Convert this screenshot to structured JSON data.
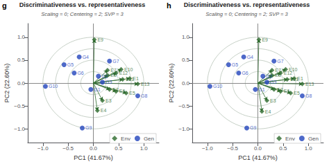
{
  "chart_data": [
    {
      "type": "scatter",
      "title": "Discriminativeness vs. representativeness",
      "subtitle": "Scaling = 0; Centering = 2; SVP = 3",
      "annotations": [
        "g"
      ],
      "xlabel": "PC1 (41.67%)",
      "ylabel": "PC2 (22.60%)",
      "xlim": [
        -1.3,
        1.3
      ],
      "ylim": [
        -1.3,
        1.3
      ],
      "xticks": [
        {
          "value": -1.0,
          "label": "−1.0"
        },
        {
          "value": -0.5,
          "label": "−0.5"
        },
        {
          "value": 0.0,
          "label": "0.0"
        },
        0.5,
        {
          "value": 1.0,
          "label": "1.0"
        }
      ],
      "yticks": [
        {
          "value": -1.0,
          "label": "−1.0"
        },
        {
          "value": -0.5,
          "label": "−0.5"
        },
        {
          "value": 0.0,
          "label": "0.0"
        },
        0.5,
        {
          "value": 1.0,
          "label": "1.0"
        }
      ],
      "grid": false,
      "legend": "lower right",
      "circle_radii": [
        0.25,
        0.5,
        0.75,
        1.0
      ],
      "series": [
        {
          "name": "Env",
          "type": "vector",
          "color": "#2d6a2d",
          "marker": "diamond",
          "labels": [
            "E9",
            "E7",
            "E10",
            "E12",
            "E8",
            "E11",
            "E1",
            "E2",
            "E6",
            "E5",
            "E3",
            "E4",
            "E13"
          ],
          "x": [
            0.02,
            0.28,
            0.55,
            0.45,
            0.28,
            0.58,
            0.72,
            0.32,
            0.45,
            0.65,
            0.18,
            0.08,
            0.88
          ],
          "y": [
            0.95,
            0.28,
            0.3,
            0.22,
            0.17,
            0.08,
            0.1,
            -0.14,
            -0.18,
            -0.22,
            -0.38,
            -0.6,
            -0.02
          ]
        },
        {
          "name": "Gen",
          "type": "scatter",
          "color": "#2244bb",
          "marker": "circle",
          "labels": [
            "G4",
            "G5",
            "G6",
            "G7",
            "G8",
            "G9",
            "G10",
            "G1",
            "G2",
            "G3"
          ],
          "x": [
            -0.28,
            -0.58,
            -0.38,
            0.32,
            0.88,
            -0.22,
            -0.95,
            -0.05,
            0.1,
            0.18
          ],
          "y": [
            0.57,
            0.4,
            0.22,
            0.48,
            -0.28,
            -0.98,
            -0.07,
            -0.14,
            0.15,
            0.02
          ]
        }
      ]
    },
    {
      "type": "scatter",
      "title": "Discriminativeness vs. representativeness",
      "subtitle": "Scaling = 0; Centering = 2; SVP = 3",
      "annotations": [
        "h"
      ],
      "xlabel": "PC1 (41.67%)",
      "ylabel": "PC2 (22.60%)",
      "xlim": [
        -1.3,
        1.3
      ],
      "ylim": [
        -1.3,
        1.3
      ],
      "xticks": [
        {
          "value": -1.0,
          "label": "−1.0"
        },
        {
          "value": -0.5,
          "label": "−0.5"
        },
        {
          "value": 0.0,
          "label": "0.0"
        },
        0.5,
        {
          "value": 1.0,
          "label": "1.0"
        }
      ],
      "yticks": [
        {
          "value": -1.0,
          "label": "−1.0"
        },
        {
          "value": -0.5,
          "label": "−0.5"
        },
        {
          "value": 0.0,
          "label": "0.0"
        },
        0.5,
        {
          "value": 1.0,
          "label": "1.0"
        }
      ],
      "grid": false,
      "legend": "lower right",
      "circle_radii": [
        0.25,
        0.5,
        0.75,
        1.0
      ],
      "series": [
        {
          "name": "Env",
          "type": "vector",
          "color": "#2d6a2d",
          "marker": "diamond",
          "labels": [
            "E9",
            "E7",
            "E10",
            "E12",
            "E8",
            "E11",
            "E1",
            "E2",
            "E6",
            "E5",
            "E3",
            "E4",
            "E13"
          ],
          "x": [
            0.02,
            0.28,
            0.55,
            0.45,
            0.28,
            0.58,
            0.72,
            0.32,
            0.45,
            0.65,
            0.18,
            0.08,
            0.88
          ],
          "y": [
            0.95,
            0.28,
            0.3,
            0.22,
            0.17,
            0.08,
            0.1,
            -0.14,
            -0.18,
            -0.22,
            -0.38,
            -0.62,
            -0.02
          ]
        },
        {
          "name": "Gen",
          "type": "scatter",
          "color": "#2244bb",
          "marker": "circle",
          "labels": [
            "G4",
            "G5",
            "G6",
            "G7",
            "G8",
            "G9",
            "G10",
            "G1",
            "G2",
            "G3"
          ],
          "x": [
            -0.28,
            -0.58,
            -0.38,
            0.32,
            0.88,
            -0.22,
            -0.95,
            -0.05,
            0.1,
            0.18
          ],
          "y": [
            0.57,
            0.4,
            0.22,
            0.48,
            -0.28,
            -0.98,
            -0.07,
            -0.14,
            0.15,
            0.02
          ]
        }
      ]
    }
  ]
}
